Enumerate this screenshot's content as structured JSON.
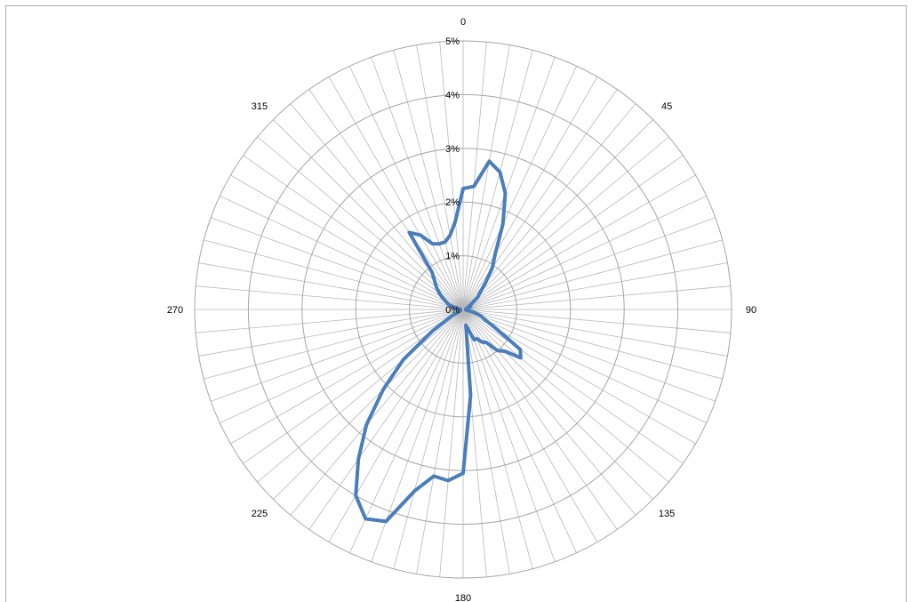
{
  "chart_data": {
    "type": "radar",
    "title": "",
    "angle_labels": [
      {
        "angle": 0,
        "text": "0"
      },
      {
        "angle": 45,
        "text": "45"
      },
      {
        "angle": 90,
        "text": "90"
      },
      {
        "angle": 135,
        "text": "135"
      },
      {
        "angle": 180,
        "text": "180"
      },
      {
        "angle": 225,
        "text": "225"
      },
      {
        "angle": 270,
        "text": "270"
      },
      {
        "angle": 315,
        "text": "315"
      }
    ],
    "radial_ticks": [
      {
        "value": 0,
        "text": "0%"
      },
      {
        "value": 1,
        "text": "1%"
      },
      {
        "value": 2,
        "text": "2%"
      },
      {
        "value": 3,
        "text": "3%"
      },
      {
        "value": 4,
        "text": "4%"
      },
      {
        "value": 5,
        "text": "5%"
      }
    ],
    "rlim": [
      0,
      5
    ],
    "unit": "%",
    "spoke_count": 72,
    "grid": true,
    "legend": "none",
    "colors": {
      "series": "#4a7ebb",
      "grid": "#a6a6a6",
      "spoke": "#b8b8b8",
      "frame": "#a9a9a9"
    },
    "series": [
      {
        "direction_step_deg": 5,
        "x": [
          0,
          5,
          10,
          15,
          20,
          25,
          30,
          35,
          40,
          45,
          50,
          55,
          60,
          65,
          70,
          75,
          80,
          85,
          90,
          95,
          100,
          105,
          110,
          115,
          120,
          125,
          130,
          135,
          140,
          145,
          150,
          155,
          160,
          165,
          170,
          175,
          180,
          185,
          190,
          195,
          200,
          205,
          210,
          215,
          220,
          225,
          230,
          235,
          240,
          245,
          250,
          255,
          260,
          265,
          270,
          275,
          280,
          285,
          290,
          295,
          300,
          305,
          310,
          315,
          320,
          325,
          330,
          335,
          340,
          345,
          350,
          355
        ],
        "values": [
          2.25,
          2.3,
          2.8,
          2.65,
          2.3,
          1.75,
          1.2,
          0.95,
          0.65,
          0.45,
          0.35,
          0.2,
          0.15,
          0.1,
          0.15,
          0.1,
          0.05,
          0.05,
          0.05,
          0.05,
          0.05,
          0.2,
          0.35,
          0.45,
          0.7,
          1.3,
          1.4,
          1.1,
          1.0,
          0.75,
          0.7,
          0.6,
          0.6,
          0.4,
          0.3,
          1.6,
          3.05,
          3.2,
          3.15,
          3.5,
          4.2,
          4.3,
          4.0,
          3.4,
          2.8,
          2.1,
          1.45,
          0.7,
          0.25,
          0.05,
          0.05,
          0.05,
          0.05,
          0.05,
          0.05,
          0.05,
          0.1,
          0.2,
          0.3,
          0.35,
          0.45,
          0.55,
          0.65,
          0.75,
          0.9,
          1.75,
          1.6,
          1.35,
          1.3,
          1.3,
          1.4,
          1.65
        ]
      }
    ]
  }
}
